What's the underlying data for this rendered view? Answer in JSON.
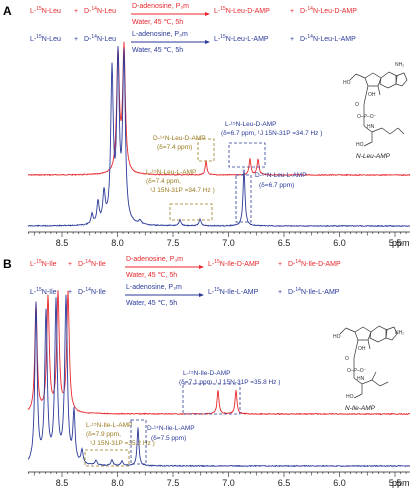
{
  "panels": [
    {
      "letter": "A",
      "eq1": {
        "reactant1_pre": "L-",
        "reactant1_iso": "15",
        "reactant1_post": "N-Leu",
        "plus1": "+",
        "reactant2_pre": "D-",
        "reactant2_iso": "14",
        "reactant2_post": "N-Leu",
        "above": "D-adenosine, P₃m",
        "below": "Water, 45 ℃, 5h",
        "product1_pre": "L-",
        "product1_iso": "15",
        "product1_post": "N-Leu-D-AMP",
        "plus2": "+",
        "product2_pre": "D-",
        "product2_iso": "14",
        "product2_post": "N-Leu-D-AMP"
      },
      "eq2": {
        "reactant1_pre": "L-",
        "reactant1_iso": "15",
        "reactant1_post": "N-Leu",
        "plus1": "+",
        "reactant2_pre": "D-",
        "reactant2_iso": "14",
        "reactant2_post": "N-Leu",
        "above": "L-adenosine, P₃m",
        "below": "Water, 45 ℃, 5h",
        "product1_pre": "L-",
        "product1_iso": "15",
        "product1_post": "N-Leu-L-AMP",
        "plus2": "+",
        "product2_pre": "D-",
        "product2_iso": "14",
        "product2_post": "N-Leu-L-AMP"
      },
      "annotations": {
        "d14_red": "D-¹⁴N-Leu-D-AMP",
        "d14_red_shift": "(δ=7.4 ppm)",
        "l15_red": "L-¹⁵N-Leu-D-AMP",
        "l15_red_shift": "(δ=6.7 ppm, ¹J 15N-31P =34.7 Hz )",
        "l15_blue": "L-¹⁵N-Leu-L-AMP",
        "l15_blue_shift1": "(δ=7.4 ppm,",
        "l15_blue_shift2": "¹J 15N-31P =34.7 Hz )",
        "d14_blue": "D-¹⁴N-Leu-L-AMP",
        "d14_blue_shift": "(δ=6.7 ppm)"
      },
      "structure_label": "N-Leu-AMP",
      "axis": {
        "ticks": [
          "8.5",
          "8.0",
          "7.5",
          "7.0",
          "6.5",
          "6.0",
          "5.5"
        ],
        "unit": "ppm"
      }
    },
    {
      "letter": "B",
      "eq1": {
        "reactant1_pre": "L-",
        "reactant1_iso": "15",
        "reactant1_post": "N-Ile",
        "plus1": "+",
        "reactant2_pre": "D-",
        "reactant2_iso": "14",
        "reactant2_post": "N-Ile",
        "above": "D-adenosine, P₃m",
        "below": "Water, 45 ℃, 5h",
        "product1_pre": "L-",
        "product1_iso": "15",
        "product1_post": "N-Ile-D-AMP",
        "plus2": "+",
        "product2_pre": "D-",
        "product2_iso": "14",
        "product2_post": "N-Ile-D-AMP"
      },
      "eq2": {
        "reactant1_pre": "L-",
        "reactant1_iso": "15",
        "reactant1_post": "N-Ile",
        "plus1": "+",
        "reactant2_pre": "D-",
        "reactant2_iso": "14",
        "reactant2_post": "N-Ile",
        "above": "L-adenosine, P₃m",
        "below": "Water, 45 ℃, 5h",
        "product1_pre": "L-",
        "product1_iso": "15",
        "product1_post": "N-Ile-L-AMP",
        "plus2": "+",
        "product2_pre": "D-",
        "product2_iso": "14",
        "product2_post": "N-Ile-L-AMP"
      },
      "annotations": {
        "l15_red": "L-¹⁵N-Ile-D-AMP",
        "l15_red_shift": "(δ=7.1 ppm, ¹J 15N-31P =35.8 Hz )",
        "l15_blue": "L-¹⁵N-Ile-L-AMP",
        "l15_blue_shift1": "(δ=7.9 ppm,",
        "l15_blue_shift2": "¹J 15N-31P =35.2 Hz )",
        "d14_blue": "D-¹⁴N-Ile-L-AMP",
        "d14_blue_shift": "(δ=7.5 ppm)"
      },
      "structure_label": "N-Ile-AMP",
      "axis": {
        "ticks": [
          "8.5",
          "8.0",
          "7.5",
          "7.0",
          "6.5",
          "6.0",
          "5.5"
        ],
        "unit": "ppm"
      }
    }
  ],
  "colors": {
    "red": "#e8282d",
    "blue": "#2b3a9a",
    "gold": "#9a7a1e",
    "black": "#222222"
  }
}
